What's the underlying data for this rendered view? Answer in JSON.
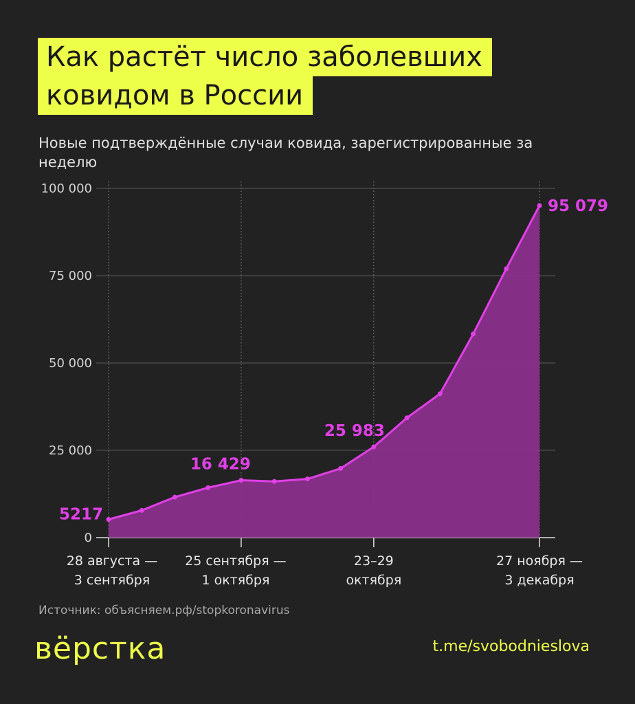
{
  "title_lines": [
    "Как растёт число заболевших",
    "ковидом в России"
  ],
  "subtitle": "Новые подтверждённые случаи ковида, зарегистрированные за неделю",
  "source": "Источник: объясняем.рф/stopkoronavirus",
  "logo": "вёрстка",
  "channel": "t.me/svobodnieslova",
  "colors": {
    "background": "#222222",
    "accent": "#eeff4a",
    "line": "#e040e6",
    "area": "#8a2f8c"
  },
  "chart_data": {
    "type": "area",
    "title": "Как растёт число заболевших ковидом в России",
    "subtitle": "Новые подтверждённые случаи ковида, зарегистрированные за неделю",
    "ylim": [
      0,
      100000
    ],
    "yticks": [
      {
        "value": 0,
        "label": "0"
      },
      {
        "value": 25000,
        "label": "25 000"
      },
      {
        "value": 50000,
        "label": "50 000"
      },
      {
        "value": 75000,
        "label": "75 000"
      },
      {
        "value": 100000,
        "label": "100 000"
      }
    ],
    "xtick_labels": [
      {
        "index": 0,
        "lines": [
          "28 августа —",
          "3 сентября"
        ]
      },
      {
        "index": 4,
        "lines": [
          "25 сентября —",
          "1 октября"
        ]
      },
      {
        "index": 8,
        "lines": [
          "23–29",
          "октября"
        ]
      },
      {
        "index": 13,
        "lines": [
          "27 ноября —",
          "3 декабря"
        ]
      }
    ],
    "values": [
      5217,
      7800,
      11600,
      14300,
      16429,
      16100,
      16800,
      19800,
      25983,
      34300,
      41200,
      58300,
      77000,
      95079
    ],
    "data_labels": [
      {
        "index": 0,
        "text": "5217"
      },
      {
        "index": 4,
        "text": "16 429"
      },
      {
        "index": 8,
        "text": "25 983"
      },
      {
        "index": 13,
        "text": "95 079"
      }
    ],
    "grid": true
  }
}
